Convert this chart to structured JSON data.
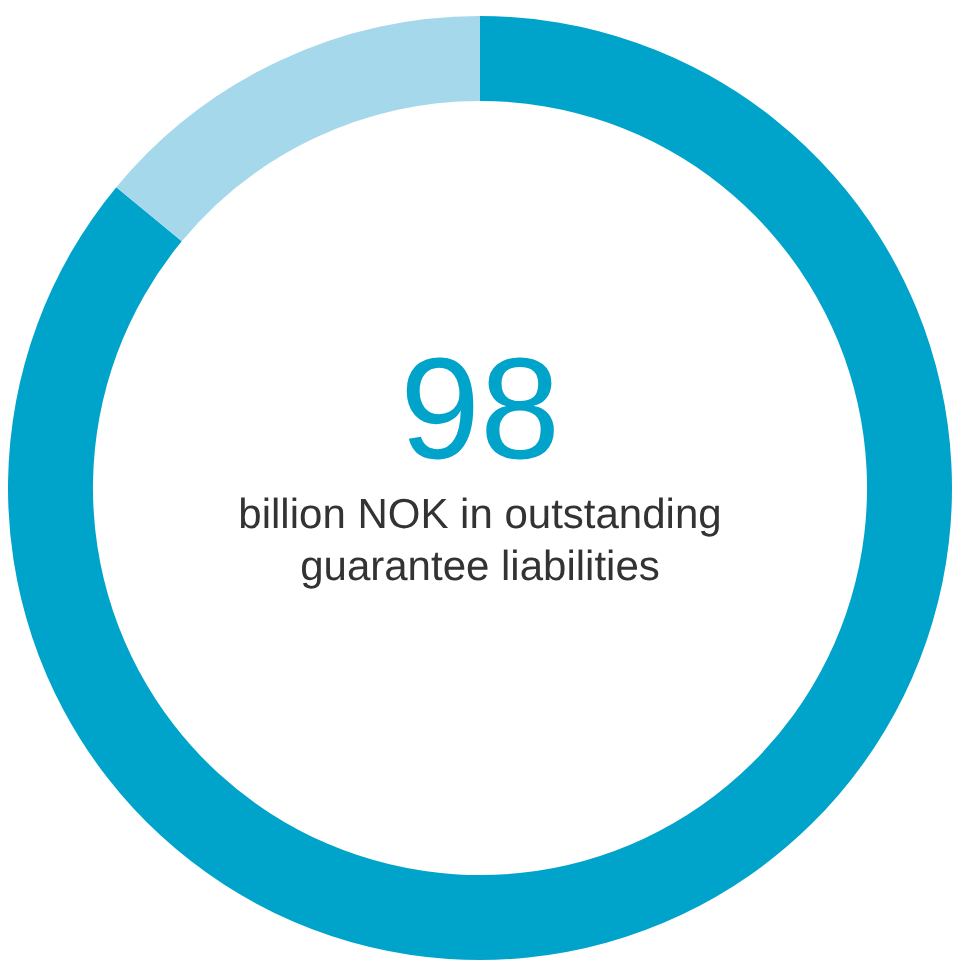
{
  "chart_data": {
    "type": "donut",
    "categories": [
      null,
      null
    ],
    "values": [
      86,
      14
    ],
    "colors": [
      "#00a3c9",
      "#a5d8ea"
    ],
    "annotations": [
      "98",
      "billion NOK in outstanding guarantee liabilities"
    ]
  }
}
